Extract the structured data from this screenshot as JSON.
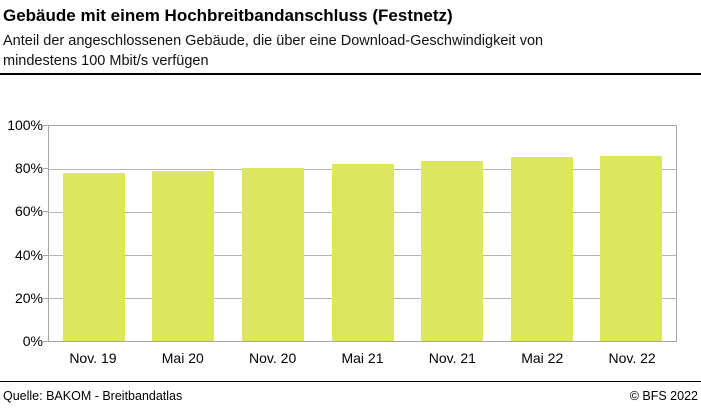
{
  "header": {
    "title": "Gebäude mit einem Hochbreitbandanschluss (Festnetz)",
    "subtitle_lines": [
      "Anteil der angeschlossenen Gebäude, die über eine Download-Geschwindigkeit von",
      "mindestens 100 Mbit/s verfügen"
    ]
  },
  "footer": {
    "source": "Quelle: BAKOM - Breitbandatlas",
    "copyright": "© BFS 2022"
  },
  "chart_data": {
    "type": "bar",
    "title": "Gebäude mit einem Hochbreitbandanschluss (Festnetz)",
    "categories": [
      "Nov. 19",
      "Mai 20",
      "Nov. 20",
      "Mai 21",
      "Nov. 21",
      "Mai 22",
      "Nov. 22"
    ],
    "values": [
      78,
      79,
      80.5,
      82.5,
      83.5,
      85.5,
      86
    ],
    "xlabel": "",
    "ylabel": "",
    "ylim": [
      0,
      100
    ],
    "yticks": [
      0,
      20,
      40,
      60,
      80,
      100
    ],
    "ytick_labels": [
      "0%",
      "20%",
      "40%",
      "60%",
      "80%",
      "100%"
    ],
    "grid": true,
    "legend_position": "none",
    "colors": {
      "bar": "#dce65f",
      "grid": "#b3b3b3",
      "axis": "#a6a6a6",
      "rule": "#000000",
      "text": "#000000"
    }
  }
}
